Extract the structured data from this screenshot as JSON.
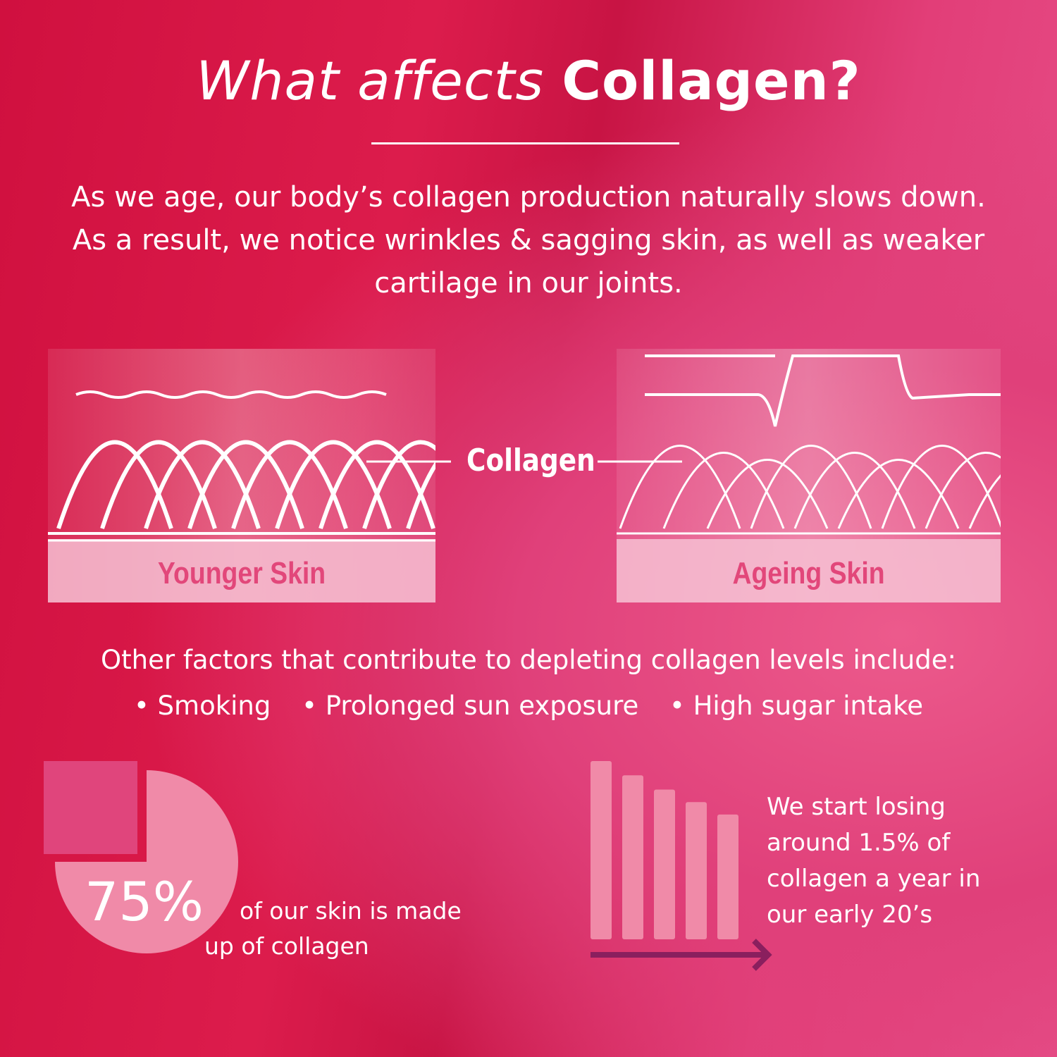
{
  "title": {
    "prefix": "What affects ",
    "emphasis": "Collagen?"
  },
  "intro": "As we age, our body’s collagen production naturally slows down. As a result, we notice wrinkles & sagging skin, as well as weaker cartilage in our joints.",
  "diagram": {
    "collagen_label": "Collagen",
    "younger_label": "Younger Skin",
    "ageing_label": "Ageing Skin"
  },
  "factors": {
    "heading": "Other factors that contribute to depleting collagen levels include:",
    "items": [
      "• Smoking",
      "• Prolonged sun exposure",
      "• High sugar intake"
    ]
  },
  "stats": {
    "skin_percent": "75%",
    "skin_percent_value": 75,
    "skin_desc_line1": "of our skin is made",
    "skin_desc_line2": "up of collagen",
    "loss_text": "We start losing around 1.5% of collagen a year in our early 20’s",
    "decline_bars": [
      100,
      92,
      84,
      77,
      70
    ]
  },
  "colors": {
    "pie": "#f08aa8",
    "pie_cut": "#e0457c",
    "bars": "#f08aa8",
    "arrow": "#8a1f5e",
    "label": "#e2477a"
  }
}
